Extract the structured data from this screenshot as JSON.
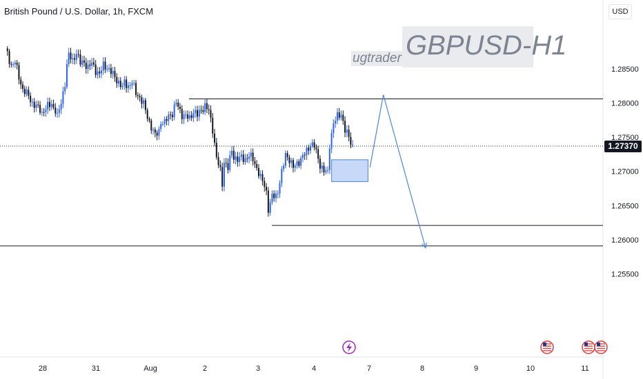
{
  "header": {
    "symbol_title": "British Pound / U.S. Dollar, 1h, FXCM",
    "currency": "USD"
  },
  "watermark": {
    "main": "GBPUSD-H1",
    "user": "ugtrader"
  },
  "colors": {
    "bull": "#2962ff",
    "bear": "#131722",
    "drawing": "#4a83e8",
    "zone_fill": "#c8d8f8",
    "level_line": "#131722"
  },
  "chart_data": {
    "type": "candlestick",
    "title": "British Pound / U.S. Dollar, 1h, FXCM",
    "ylim": [
      1.2525,
      1.2895
    ],
    "y_ticks": [
      "1.28500",
      "1.28000",
      "1.27500",
      "1.27000",
      "1.26500",
      "1.26000",
      "1.25500"
    ],
    "x_ticks": [
      "28",
      "31",
      "Aug",
      "2",
      "3",
      "4",
      "7",
      "8",
      "9",
      "10",
      "11"
    ],
    "last_price": "1.27370",
    "path": [
      [
        0,
        1.288
      ],
      [
        3,
        1.2855
      ],
      [
        5,
        1.286
      ],
      [
        7,
        1.2838
      ],
      [
        9,
        1.282
      ],
      [
        12,
        1.281
      ],
      [
        14,
        1.28
      ],
      [
        16,
        1.2795
      ],
      [
        18,
        1.279
      ],
      [
        19,
        1.2785
      ],
      [
        20,
        1.279
      ],
      [
        22,
        1.2795
      ],
      [
        24,
        1.2798
      ],
      [
        26,
        1.279
      ],
      [
        27,
        1.278
      ],
      [
        29,
        1.28
      ],
      [
        31,
        1.283
      ],
      [
        32,
        1.2855
      ],
      [
        33,
        1.287
      ],
      [
        35,
        1.2862
      ],
      [
        37,
        1.2874
      ],
      [
        39,
        1.2858
      ],
      [
        41,
        1.286
      ],
      [
        43,
        1.2852
      ],
      [
        45,
        1.2858
      ],
      [
        47,
        1.2848
      ],
      [
        49,
        1.2842
      ],
      [
        51,
        1.2855
      ],
      [
        53,
        1.2852
      ],
      [
        55,
        1.2845
      ],
      [
        57,
        1.2838
      ],
      [
        59,
        1.283
      ],
      [
        61,
        1.2822
      ],
      [
        62,
        1.283
      ],
      [
        64,
        1.2825
      ],
      [
        66,
        1.283
      ],
      [
        68,
        1.2815
      ],
      [
        70,
        1.2808
      ],
      [
        72,
        1.2798
      ],
      [
        74,
        1.278
      ],
      [
        76,
        1.2765
      ],
      [
        78,
        1.2752
      ],
      [
        80,
        1.276
      ],
      [
        81,
        1.2773
      ],
      [
        83,
        1.277
      ],
      [
        85,
        1.2782
      ],
      [
        87,
        1.2785
      ],
      [
        89,
        1.28
      ],
      [
        90,
        1.2795
      ],
      [
        92,
        1.2783
      ],
      [
        94,
        1.278
      ],
      [
        96,
        1.2778
      ],
      [
        98,
        1.2788
      ],
      [
        100,
        1.2782
      ],
      [
        102,
        1.279
      ],
      [
        104,
        1.2796
      ],
      [
        106,
        1.2788
      ],
      [
        108,
        1.2762
      ],
      [
        110,
        1.272
      ],
      [
        112,
        1.27
      ],
      [
        113,
        1.2682
      ],
      [
        114,
        1.2715
      ],
      [
        116,
        1.2705
      ],
      [
        118,
        1.273
      ],
      [
        119,
        1.2722
      ],
      [
        121,
        1.2717
      ],
      [
        123,
        1.272
      ],
      [
        125,
        1.2718
      ],
      [
        127,
        1.2723
      ],
      [
        129,
        1.2718
      ],
      [
        131,
        1.2705
      ],
      [
        133,
        1.269
      ],
      [
        135,
        1.268
      ],
      [
        136,
        1.267
      ],
      [
        137,
        1.2645
      ],
      [
        138,
        1.2652
      ],
      [
        139,
        1.2663
      ],
      [
        141,
        1.2665
      ],
      [
        142,
        1.2672
      ],
      [
        143,
        1.2685
      ],
      [
        145,
        1.271
      ],
      [
        146,
        1.2725
      ],
      [
        148,
        1.2718
      ],
      [
        150,
        1.2705
      ],
      [
        152,
        1.2712
      ],
      [
        154,
        1.2718
      ],
      [
        156,
        1.2725
      ],
      [
        158,
        1.2735
      ],
      [
        159,
        1.274
      ],
      [
        161,
        1.2737
      ],
      [
        162,
        1.2728
      ],
      [
        164,
        1.271
      ],
      [
        166,
        1.27
      ],
      [
        168,
        1.2698
      ],
      [
        169,
        1.274
      ],
      [
        171,
        1.277
      ],
      [
        173,
        1.278
      ],
      [
        175,
        1.2785
      ],
      [
        177,
        1.276
      ],
      [
        179,
        1.275
      ],
      [
        181,
        1.2737
      ]
    ],
    "levels": [
      1.2806,
      1.2621,
      1.2591
    ],
    "demand_zone": {
      "from_hour": 170,
      "to_hour": 189,
      "low": 1.2685,
      "high": 1.2717
    },
    "projection": [
      [
        190,
        1.2706
      ],
      [
        197,
        1.2812
      ],
      [
        219,
        1.2588
      ]
    ]
  }
}
